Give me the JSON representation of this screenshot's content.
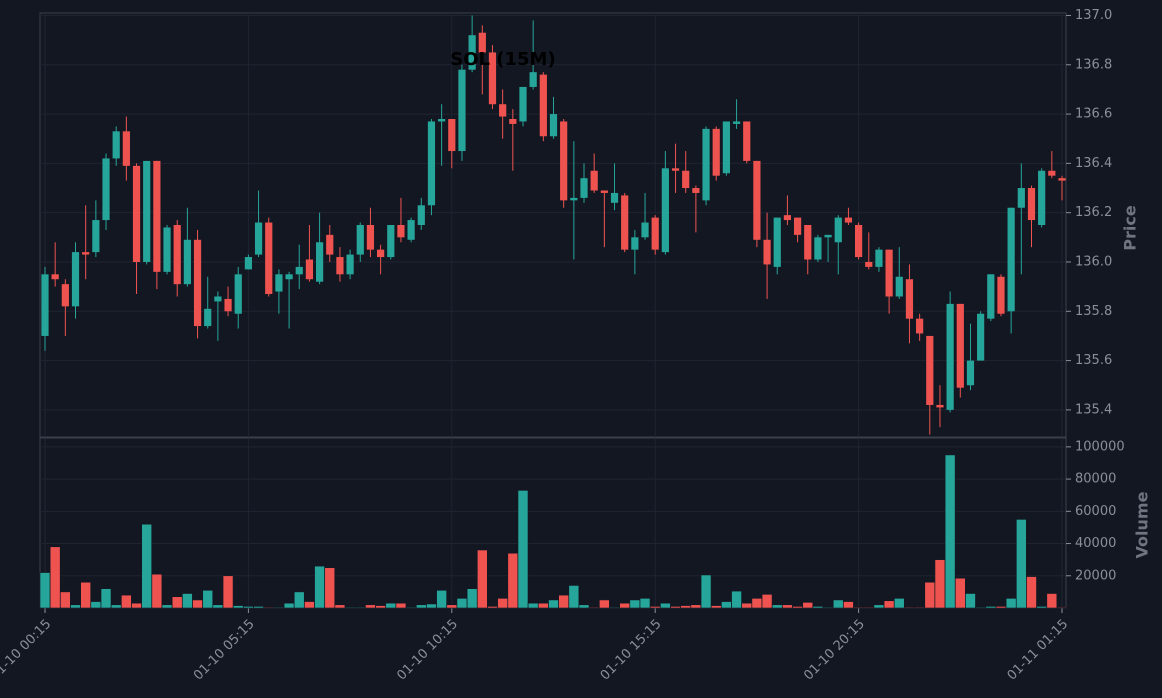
{
  "chart_data": [
    {
      "type": "candlestick",
      "title": "SOL (15M)",
      "ylabel": "Price",
      "up_color": "#26a69a",
      "down_color": "#ef5350",
      "grid": true,
      "ylim": [
        135.29,
        137.01
      ],
      "yticks": [
        135.4,
        135.6,
        135.8,
        {
          "value": 136.0,
          "label": "136.0"
        },
        136.2,
        136.4,
        136.6,
        136.8,
        {
          "value": 137.0,
          "label": "137.0"
        }
      ],
      "open": [
        135.7,
        135.95,
        135.91,
        135.82,
        136.04,
        136.04,
        136.17,
        136.42,
        136.53,
        136.39,
        136.0,
        136.41,
        135.96,
        136.15,
        135.91,
        136.09,
        135.74,
        135.84,
        135.85,
        135.79,
        135.97,
        136.03,
        136.16,
        135.88,
        135.93,
        135.95,
        136.01,
        135.92,
        136.11,
        136.02,
        135.95,
        136.03,
        136.15,
        136.05,
        136.02,
        136.15,
        136.09,
        136.15,
        136.23,
        136.57,
        136.58,
        136.45,
        136.78,
        136.93,
        136.85,
        136.64,
        136.58,
        136.57,
        136.71,
        136.76,
        136.51,
        136.57,
        136.25,
        136.26,
        136.37,
        136.29,
        136.24,
        136.27,
        136.05,
        136.1,
        136.18,
        136.04,
        136.38,
        136.37,
        136.3,
        136.25,
        136.54,
        136.36,
        136.56,
        136.57,
        136.41,
        136.09,
        135.98,
        136.19,
        136.18,
        136.15,
        136.01,
        136.1,
        136.08,
        136.18,
        136.15,
        136.0,
        135.98,
        136.05,
        135.86,
        135.93,
        135.77,
        135.7,
        135.42,
        135.4,
        135.83,
        135.5,
        135.6,
        135.77,
        135.94,
        135.8,
        136.22,
        136.3,
        136.15,
        136.37,
        136.34
      ],
      "high": [
        135.98,
        136.08,
        135.93,
        136.08,
        136.23,
        136.25,
        136.44,
        136.55,
        136.59,
        136.4,
        136.41,
        136.41,
        136.15,
        136.17,
        136.22,
        136.13,
        135.94,
        135.88,
        135.9,
        135.98,
        136.03,
        136.29,
        136.18,
        135.97,
        135.96,
        136.07,
        136.15,
        136.2,
        136.15,
        136.06,
        136.05,
        136.16,
        136.22,
        136.07,
        136.15,
        136.26,
        136.18,
        136.26,
        136.58,
        136.64,
        136.58,
        136.8,
        137.0,
        136.96,
        136.88,
        136.7,
        136.62,
        136.71,
        136.98,
        136.77,
        136.67,
        136.58,
        136.49,
        136.4,
        136.44,
        136.29,
        136.4,
        136.28,
        136.13,
        136.28,
        136.19,
        136.45,
        136.48,
        136.45,
        136.31,
        136.55,
        136.55,
        136.57,
        136.66,
        136.57,
        136.41,
        136.2,
        136.18,
        136.27,
        136.18,
        136.15,
        136.11,
        136.11,
        136.19,
        136.22,
        136.16,
        136.12,
        136.06,
        136.05,
        136.06,
        135.99,
        135.79,
        135.7,
        135.5,
        135.88,
        135.83,
        135.75,
        135.8,
        135.95,
        135.95,
        136.22,
        136.4,
        136.31,
        136.38,
        136.45,
        136.35
      ],
      "low": [
        135.64,
        135.9,
        135.7,
        135.77,
        135.93,
        136.02,
        136.13,
        136.39,
        136.33,
        135.87,
        135.99,
        135.89,
        135.95,
        135.86,
        135.9,
        135.69,
        135.73,
        135.68,
        135.78,
        135.73,
        135.97,
        136.02,
        135.86,
        135.79,
        135.73,
        135.89,
        135.92,
        135.91,
        136.0,
        135.92,
        135.93,
        136.0,
        136.02,
        135.95,
        136.01,
        136.08,
        136.08,
        136.13,
        136.19,
        136.39,
        136.38,
        136.41,
        136.77,
        136.68,
        136.62,
        136.5,
        136.37,
        136.55,
        136.7,
        136.49,
        136.5,
        136.22,
        136.01,
        136.24,
        136.28,
        136.06,
        136.21,
        136.04,
        135.95,
        136.09,
        136.03,
        136.03,
        136.28,
        136.28,
        136.12,
        136.23,
        136.33,
        136.35,
        136.54,
        136.4,
        136.06,
        135.85,
        135.95,
        136.15,
        136.08,
        135.95,
        136.0,
        136.0,
        135.95,
        136.15,
        136.01,
        135.97,
        135.96,
        135.79,
        135.85,
        135.67,
        135.68,
        135.3,
        135.33,
        135.39,
        135.45,
        135.48,
        135.6,
        135.76,
        135.78,
        135.71,
        135.95,
        136.06,
        136.14,
        136.34,
        136.25
      ],
      "close": [
        135.95,
        135.93,
        135.82,
        136.04,
        136.03,
        136.17,
        136.42,
        136.53,
        136.39,
        136.0,
        136.41,
        135.96,
        136.14,
        135.91,
        136.09,
        135.74,
        135.81,
        135.86,
        135.8,
        135.95,
        136.02,
        136.16,
        135.87,
        135.95,
        135.95,
        135.98,
        135.93,
        136.08,
        136.03,
        135.95,
        136.03,
        136.15,
        136.05,
        136.02,
        136.15,
        136.1,
        136.17,
        136.23,
        136.57,
        136.58,
        136.45,
        136.78,
        136.92,
        136.85,
        136.64,
        136.59,
        136.56,
        136.71,
        136.77,
        136.51,
        136.6,
        136.25,
        136.26,
        136.34,
        136.29,
        136.28,
        136.28,
        136.05,
        136.1,
        136.16,
        136.05,
        136.38,
        136.37,
        136.3,
        136.28,
        136.54,
        136.35,
        136.57,
        136.57,
        136.41,
        136.09,
        135.99,
        136.18,
        136.17,
        136.11,
        136.01,
        136.1,
        136.11,
        136.18,
        136.16,
        136.02,
        135.98,
        136.05,
        135.86,
        135.94,
        135.77,
        135.71,
        135.42,
        135.41,
        135.83,
        135.49,
        135.6,
        135.79,
        135.95,
        135.79,
        136.22,
        136.3,
        136.17,
        136.37,
        136.35,
        136.33
      ]
    },
    {
      "type": "bar",
      "ylabel": "Volume",
      "grid": true,
      "ylim": [
        0,
        105500
      ],
      "yticks": [
        20000,
        40000,
        60000,
        80000,
        100000
      ],
      "categories": [
        "01-10 00:15",
        null,
        null,
        null,
        null,
        null,
        null,
        null,
        null,
        null,
        null,
        null,
        null,
        null,
        null,
        null,
        null,
        null,
        null,
        null,
        "01-10 05:15",
        null,
        null,
        null,
        null,
        null,
        null,
        null,
        null,
        null,
        null,
        null,
        null,
        null,
        null,
        null,
        null,
        null,
        null,
        null,
        "01-10 10:15",
        null,
        null,
        null,
        null,
        null,
        null,
        null,
        null,
        null,
        null,
        null,
        null,
        null,
        null,
        null,
        null,
        null,
        null,
        null,
        "01-10 15:15",
        null,
        null,
        null,
        null,
        null,
        null,
        null,
        null,
        null,
        null,
        null,
        null,
        null,
        null,
        null,
        null,
        null,
        null,
        null,
        "01-10 20:15",
        null,
        null,
        null,
        null,
        null,
        null,
        null,
        null,
        null,
        null,
        null,
        null,
        null,
        null,
        null,
        null,
        null,
        null,
        null,
        "01-11 01:15"
      ],
      "values": [
        22000,
        38000,
        10000,
        2000,
        16000,
        4000,
        12000,
        2000,
        8000,
        3000,
        52000,
        21000,
        2000,
        7000,
        9000,
        5000,
        11000,
        2000,
        20000,
        1500,
        1000,
        1000,
        500,
        500,
        3000,
        10000,
        4000,
        26000,
        25000,
        2000,
        500,
        500,
        2000,
        1500,
        3000,
        3000,
        500,
        2000,
        2500,
        11000,
        2000,
        6000,
        12000,
        36000,
        1000,
        6000,
        34000,
        73000,
        3000,
        3000,
        5000,
        8000,
        14000,
        2000,
        500,
        5000,
        500,
        3000,
        5000,
        6000,
        1000,
        3000,
        1000,
        1500,
        2000,
        20500,
        1500,
        4000,
        10500,
        3000,
        6000,
        8500,
        2000,
        2000,
        1000,
        3500,
        1000,
        500,
        5000,
        4000,
        500,
        500,
        2000,
        4500,
        6000,
        500,
        500,
        16000,
        30000,
        95000,
        18500,
        9000,
        500,
        1000,
        1000,
        6000,
        55000,
        19500,
        1000,
        9000,
        500
      ]
    }
  ]
}
